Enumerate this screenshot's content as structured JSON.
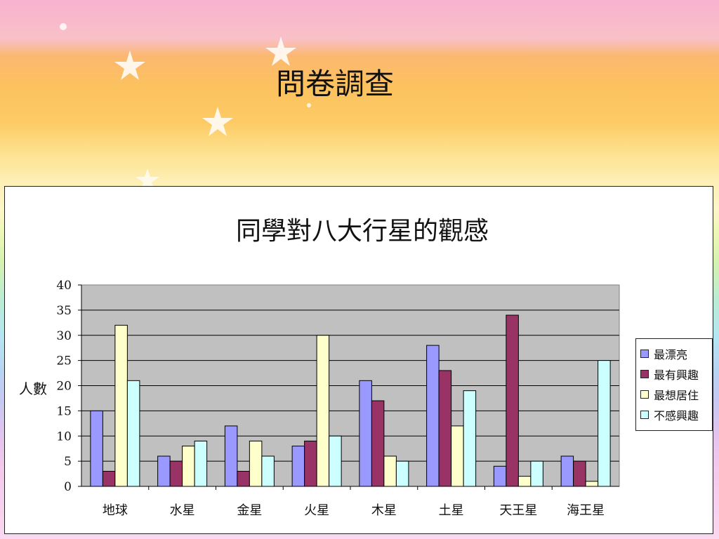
{
  "slide": {
    "title": "問卷調查"
  },
  "chart_data": {
    "type": "bar",
    "title": "同學對八大行星的觀感",
    "xlabel": "",
    "ylabel": "人數",
    "ylim": [
      0,
      40
    ],
    "yticks": [
      "0",
      "5",
      "10",
      "15",
      "20",
      "25",
      "30",
      "35",
      "40"
    ],
    "grid": true,
    "legend_position": "right",
    "categories": [
      "地球",
      "水星",
      "金星",
      "火星",
      "木星",
      "土星",
      "天王星",
      "海王星"
    ],
    "series": [
      {
        "name": "最漂亮",
        "color": "#9999ff",
        "values": [
          15,
          6,
          12,
          8,
          21,
          28,
          4,
          6
        ]
      },
      {
        "name": "最有興趣",
        "color": "#993366",
        "values": [
          3,
          5,
          3,
          9,
          17,
          23,
          34,
          5
        ]
      },
      {
        "name": "最想居住",
        "color": "#ffffcc",
        "values": [
          32,
          8,
          9,
          30,
          6,
          12,
          2,
          1
        ]
      },
      {
        "name": "不感興趣",
        "color": "#ccffff",
        "values": [
          21,
          9,
          6,
          10,
          5,
          19,
          5,
          25
        ]
      }
    ]
  }
}
